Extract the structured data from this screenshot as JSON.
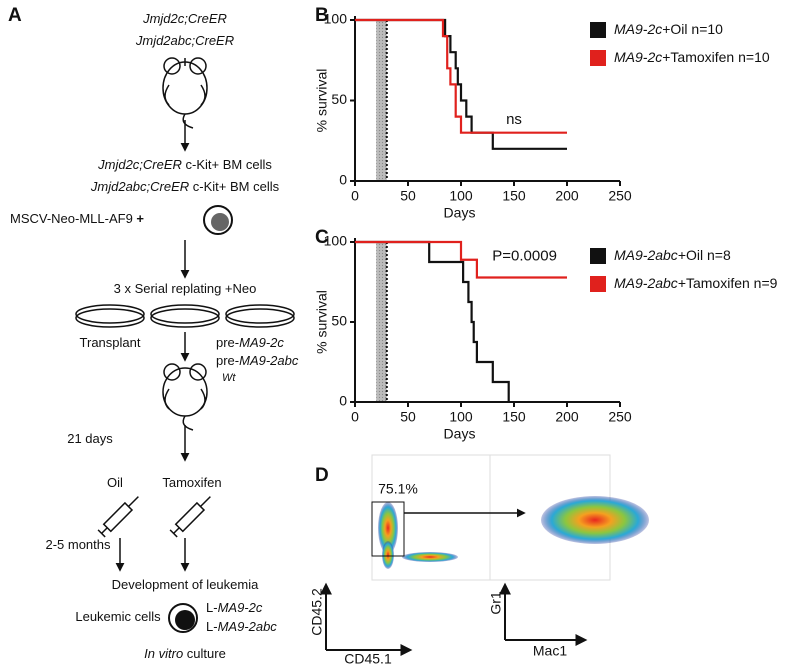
{
  "panel_A": {
    "label": "A",
    "lines": [
      [
        {
          "text": "Jmjd2c;CreER",
          "italic": true
        }
      ],
      [
        {
          "text": "Jmjd2abc;CreER",
          "italic": true
        }
      ],
      [
        {
          "text": "Jmjd2c;CreER",
          "italic": true
        },
        {
          "text": " c-Kit+ BM cells"
        }
      ],
      [
        {
          "text": "Jmjd2abc;CreER",
          "italic": true
        },
        {
          "text": " c-Kit+ BM cells"
        }
      ],
      [
        {
          "text": "MSCV-Neo-MLL-AF9"
        },
        {
          "text": " +",
          "bold": true
        }
      ],
      [
        {
          "text": "3 x Serial replating +Neo"
        }
      ],
      [
        {
          "text": "Transplant"
        }
      ],
      [
        {
          "text": "pre-"
        },
        {
          "text": "MA9-2c",
          "italic": true
        }
      ],
      [
        {
          "text": "pre-"
        },
        {
          "text": "MA9-2abc",
          "italic": true
        }
      ],
      [
        {
          "text": "Wt",
          "italic": true
        }
      ],
      [
        {
          "text": "21 days"
        }
      ],
      [
        {
          "text": "Oil"
        }
      ],
      [
        {
          "text": "Tamoxifen"
        }
      ],
      [
        {
          "text": "2-5 months"
        }
      ],
      [
        {
          "text": "Development of leukemia"
        }
      ],
      [
        {
          "text": "Leukemic cells"
        }
      ],
      [
        {
          "text": "L-"
        },
        {
          "text": "MA9-2c",
          "italic": true
        }
      ],
      [
        {
          "text": "L-"
        },
        {
          "text": "MA9-2abc",
          "italic": true
        }
      ],
      [
        {
          "text": "In vitro",
          "italic": true
        },
        {
          "text": " culture"
        }
      ]
    ]
  },
  "chart_data": [
    {
      "type": "line",
      "step": true,
      "panel": "B",
      "xlabel": "Days",
      "ylabel": "% survival",
      "xlim": [
        0,
        250
      ],
      "xticks": [
        0,
        50,
        100,
        150,
        200,
        250
      ],
      "ylim": [
        0,
        100
      ],
      "yticks": [
        0,
        50,
        100
      ],
      "highlight_xrange": [
        20,
        30
      ],
      "vline": 30,
      "series": [
        {
          "name": "MA9-2c+Oil n=10",
          "color": "#111111",
          "x": [
            0,
            85,
            90,
            95,
            97,
            100,
            105,
            110,
            130,
            200
          ],
          "values": [
            100,
            90,
            80,
            70,
            60,
            50,
            40,
            30,
            20,
            20
          ]
        },
        {
          "name": "MA9-2c+Tamoxifen n=10",
          "color": "#e0211d",
          "x": [
            0,
            83,
            87,
            90,
            95,
            100,
            200
          ],
          "values": [
            100,
            90,
            70,
            60,
            40,
            30,
            30
          ]
        }
      ],
      "annotations": [
        {
          "text": "ns",
          "x": 150,
          "y": 38
        }
      ]
    },
    {
      "type": "line",
      "step": true,
      "panel": "C",
      "xlabel": "Days",
      "ylabel": "% survival",
      "xlim": [
        0,
        250
      ],
      "xticks": [
        0,
        50,
        100,
        150,
        200,
        250
      ],
      "ylim": [
        0,
        100
      ],
      "yticks": [
        0,
        50,
        100
      ],
      "highlight_xrange": [
        20,
        30
      ],
      "vline": 30,
      "series": [
        {
          "name": "MA9-2abc+Oil n=8",
          "color": "#111111",
          "x": [
            0,
            70,
            102,
            107,
            110,
            112,
            115,
            130,
            145
          ],
          "values": [
            100,
            87.5,
            75,
            62.5,
            50,
            37.5,
            25,
            12.5,
            0
          ]
        },
        {
          "name": "MA9-2abc+Tamoxifen n=9",
          "color": "#e0211d",
          "x": [
            0,
            100,
            115,
            200
          ],
          "values": [
            100,
            88.9,
            77.8,
            77.8
          ]
        }
      ],
      "annotations": [
        {
          "text": "P=0.0009",
          "x": 160,
          "y": 91
        }
      ]
    }
  ],
  "panel_D": {
    "label": "D",
    "gate": "75.1%",
    "left_y": "CD45.2",
    "left_x": "CD45.1",
    "right_y": "Gr1",
    "right_x": "Mac1"
  }
}
